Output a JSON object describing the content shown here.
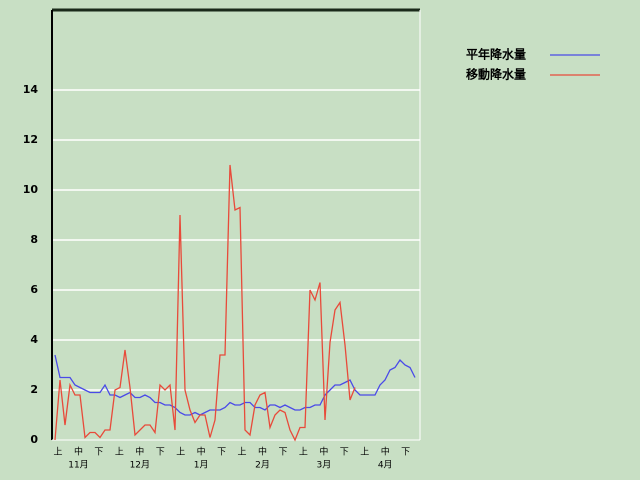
{
  "chart_data": {
    "type": "line",
    "period_labels": [
      "上",
      "中",
      "下",
      "上",
      "中",
      "下",
      "上",
      "中",
      "下",
      "上",
      "中",
      "下",
      "上",
      "中",
      "下",
      "上",
      "中",
      "下"
    ],
    "month_labels": [
      "11月",
      "12月",
      "1月",
      "2月",
      "3月",
      "4月"
    ],
    "ylim": [
      0,
      17.2
    ],
    "yticks": [
      0,
      2,
      4,
      6,
      8,
      10,
      12,
      14
    ],
    "grid": true,
    "legend": "right",
    "series": [
      {
        "name": "平年降水量",
        "color": "#4a4ae8",
        "values": [
          3.4,
          2.5,
          2.5,
          2.5,
          2.2,
          2.1,
          2.0,
          1.9,
          1.9,
          1.9,
          2.2,
          1.8,
          1.8,
          1.7,
          1.8,
          1.9,
          1.7,
          1.7,
          1.8,
          1.7,
          1.5,
          1.5,
          1.4,
          1.4,
          1.3,
          1.1,
          1.0,
          1.0,
          1.1,
          1.0,
          1.1,
          1.2,
          1.2,
          1.2,
          1.3,
          1.5,
          1.4,
          1.4,
          1.5,
          1.5,
          1.3,
          1.3,
          1.2,
          1.4,
          1.4,
          1.3,
          1.4,
          1.3,
          1.2,
          1.2,
          1.3,
          1.3,
          1.4,
          1.4,
          1.8,
          2.0,
          2.2,
          2.2,
          2.3,
          2.4,
          2.0,
          1.8,
          1.8,
          1.8,
          1.8,
          2.2,
          2.4,
          2.8,
          2.9,
          3.2,
          3.0,
          2.9,
          2.5
        ]
      },
      {
        "name": "移動降水量",
        "color": "#e84a3a",
        "values": [
          0,
          2.4,
          0.6,
          2.2,
          1.8,
          1.8,
          0.1,
          0.3,
          0.3,
          0.1,
          0.4,
          0.4,
          2.0,
          2.1,
          3.6,
          2.1,
          0.2,
          0.4,
          0.6,
          0.6,
          0.3,
          2.2,
          2.0,
          2.2,
          0.4,
          9.0,
          2.0,
          1.2,
          0.7,
          1.0,
          1.0,
          0.1,
          0.8,
          3.4,
          3.4,
          11.0,
          9.2,
          9.3,
          0.4,
          0.2,
          1.4,
          1.8,
          1.9,
          0.5,
          1.0,
          1.2,
          1.1,
          0.4,
          0.0,
          0.5,
          0.5,
          6.0,
          5.6,
          6.3,
          0.8,
          3.9,
          5.2,
          5.5,
          3.8,
          1.6,
          2.1,
          null,
          null,
          null,
          null,
          null,
          null,
          null,
          null,
          null,
          null,
          null,
          null
        ]
      }
    ]
  }
}
